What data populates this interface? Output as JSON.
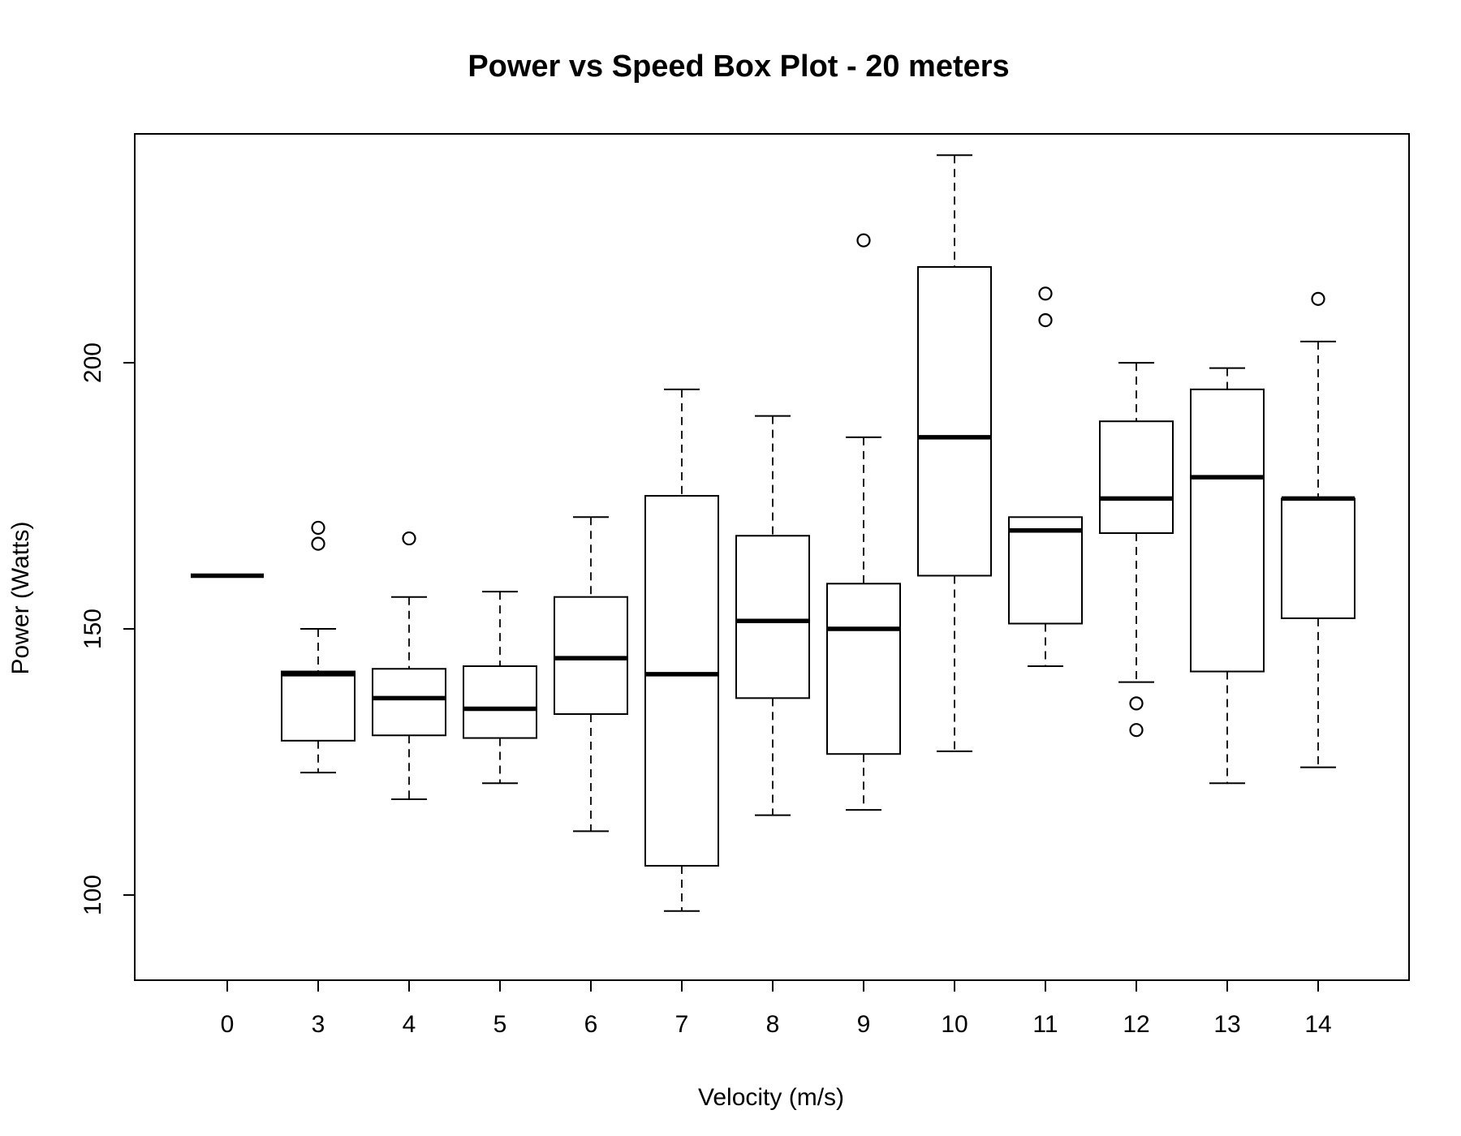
{
  "chart_data": {
    "type": "box",
    "title": "Power vs Speed Box Plot - 20 meters",
    "xlabel": "Velocity (m/s)",
    "ylabel": "Power (Watts)",
    "ylim": [
      84,
      243
    ],
    "yticks": [
      100,
      150,
      200
    ],
    "grid": false,
    "categories": [
      "0",
      "3",
      "4",
      "5",
      "6",
      "7",
      "8",
      "9",
      "10",
      "11",
      "12",
      "13",
      "14"
    ],
    "boxes": [
      {
        "category": "0",
        "min": 160,
        "q1": 160,
        "median": 160,
        "q3": 160,
        "max": 160,
        "outliers": []
      },
      {
        "category": "3",
        "min": 123,
        "q1": 129,
        "median": 141.5,
        "q3": 142,
        "max": 150,
        "outliers": [
          166,
          169
        ]
      },
      {
        "category": "4",
        "min": 118,
        "q1": 130,
        "median": 137,
        "q3": 142.5,
        "max": 156,
        "outliers": [
          167
        ]
      },
      {
        "category": "5",
        "min": 121,
        "q1": 129.5,
        "median": 135,
        "q3": 143,
        "max": 157,
        "outliers": []
      },
      {
        "category": "6",
        "min": 112,
        "q1": 134,
        "median": 144.5,
        "q3": 156,
        "max": 171,
        "outliers": []
      },
      {
        "category": "7",
        "min": 97,
        "q1": 105.5,
        "median": 141.5,
        "q3": 175,
        "max": 195,
        "outliers": []
      },
      {
        "category": "8",
        "min": 115,
        "q1": 137,
        "median": 151.5,
        "q3": 167.5,
        "max": 190,
        "outliers": []
      },
      {
        "category": "9",
        "min": 116,
        "q1": 126.5,
        "median": 150,
        "q3": 158.5,
        "max": 186,
        "outliers": [
          223
        ]
      },
      {
        "category": "10",
        "min": 127,
        "q1": 160,
        "median": 186,
        "q3": 218,
        "max": 239,
        "outliers": []
      },
      {
        "category": "11",
        "min": 143,
        "q1": 151,
        "median": 168.5,
        "q3": 171,
        "max": 171,
        "outliers": [
          208,
          213
        ]
      },
      {
        "category": "12",
        "min": 140,
        "q1": 168,
        "median": 174.5,
        "q3": 189,
        "max": 200,
        "outliers": [
          131,
          136
        ]
      },
      {
        "category": "13",
        "min": 121,
        "q1": 142,
        "median": 178.5,
        "q3": 195,
        "max": 199,
        "outliers": []
      },
      {
        "category": "14",
        "min": 124,
        "q1": 152,
        "median": 174.5,
        "q3": 174.5,
        "max": 204,
        "outliers": [
          212
        ]
      }
    ]
  }
}
